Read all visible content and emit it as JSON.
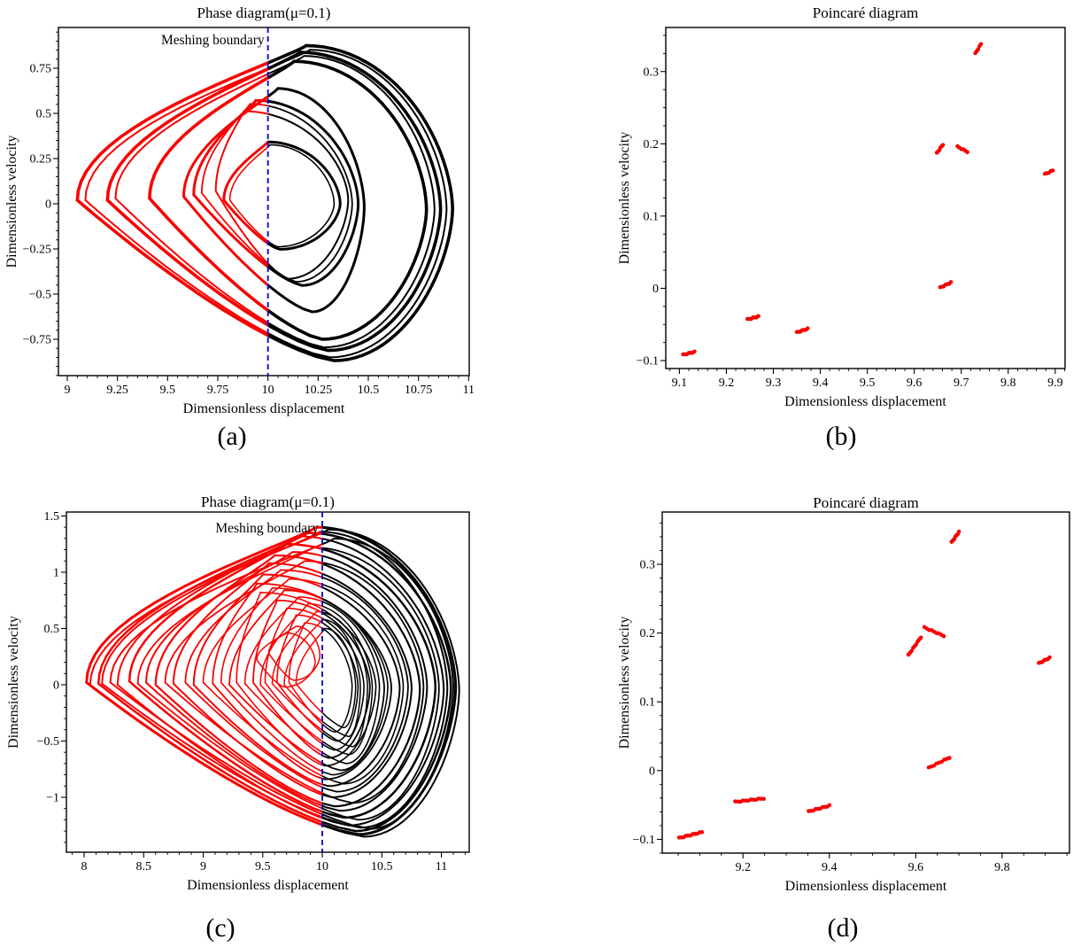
{
  "colors": {
    "background": "#ffffff",
    "trajectory_left_of_boundary": "#f80000",
    "trajectory_right_of_boundary": "#000000",
    "meshing_boundary_line": "#0a0ad8",
    "poincare_points": "#f80000",
    "axes": "#000000"
  },
  "chart_data": [
    {
      "id": "a",
      "type": "line",
      "title": "Phase diagram(μ=0.1)",
      "boundary_label": "Meshing boundary",
      "xlabel": "Dimensionless displacement",
      "ylabel": "Dimensionless velocity",
      "caption": "(a)",
      "xlim": [
        8.956,
        11.003
      ],
      "ylim": [
        -0.951,
        0.9755
      ],
      "boundary_x": 10,
      "grid": false,
      "xticks": [
        [
          9,
          "9"
        ],
        [
          9.25,
          "9.25"
        ],
        [
          9.5,
          "9.5"
        ],
        [
          9.75,
          "9.75"
        ],
        [
          10,
          "10"
        ],
        [
          10.25,
          "10.25"
        ],
        [
          10.5,
          "10.5"
        ],
        [
          10.75,
          "10.75"
        ],
        [
          11,
          "11"
        ]
      ],
      "yticks": [
        [
          -0.75,
          "−0.75"
        ],
        [
          -0.5,
          "−0.5"
        ],
        [
          -0.25,
          "−0.25"
        ],
        [
          0,
          "0"
        ],
        [
          0.25,
          "0.25"
        ],
        [
          0.5,
          "0.5"
        ],
        [
          0.75,
          "0.75"
        ]
      ],
      "minor_x": 0.05,
      "minor_y": 0.05,
      "loops": [
        [
          9.05,
          0.02,
          10.19,
          0.875,
          10.92,
          -0.03,
          10.33,
          -0.868,
          3.6
        ],
        [
          9.09,
          0.02,
          10.21,
          0.852,
          10.89,
          -0.03,
          10.31,
          -0.85,
          2.0
        ],
        [
          9.2,
          0.02,
          10.16,
          0.838,
          10.86,
          -0.03,
          10.3,
          -0.812,
          3.6
        ],
        [
          9.24,
          0.03,
          10.18,
          0.818,
          10.83,
          -0.03,
          10.28,
          -0.795,
          2.0
        ],
        [
          9.41,
          0.03,
          10.13,
          0.788,
          10.79,
          -0.03,
          10.27,
          -0.75,
          3.6
        ],
        [
          9.58,
          0.04,
          10.05,
          0.638,
          10.48,
          -0.02,
          10.22,
          -0.598,
          3.0
        ],
        [
          9.63,
          0.05,
          9.94,
          0.572,
          10.45,
          0.0,
          10.17,
          -0.452,
          3.0
        ],
        [
          9.67,
          0.06,
          9.91,
          0.552,
          10.42,
          0.0,
          10.14,
          -0.432,
          1.8
        ],
        [
          9.74,
          0.07,
          9.88,
          0.512,
          10.4,
          0.02,
          10.1,
          -0.415,
          2.0
        ],
        [
          9.78,
          0.02,
          10.0,
          0.342,
          10.36,
          0.0,
          10.06,
          -0.252,
          3.0
        ],
        [
          9.81,
          0.02,
          10.01,
          0.326,
          10.33,
          0.0,
          10.05,
          -0.238,
          1.6
        ]
      ]
    },
    {
      "id": "b",
      "type": "scatter",
      "title": "Poincaré diagram",
      "xlabel": "Dimensionless displacement",
      "ylabel": "Dimensionless velocity",
      "caption": "(b)",
      "xlim": [
        9.071,
        9.921
      ],
      "ylim": [
        -0.111,
        0.361
      ],
      "grid": false,
      "xticks": [
        [
          9.1,
          "9.1"
        ],
        [
          9.2,
          "9.2"
        ],
        [
          9.3,
          "9.3"
        ],
        [
          9.4,
          "9.4"
        ],
        [
          9.5,
          "9.5"
        ],
        [
          9.6,
          "9.6"
        ],
        [
          9.7,
          "9.7"
        ],
        [
          9.8,
          "9.8"
        ],
        [
          9.9,
          "9.9"
        ]
      ],
      "yticks": [
        [
          -0.1,
          "−0.1"
        ],
        [
          0,
          "0"
        ],
        [
          0.1,
          "0.1"
        ],
        [
          0.2,
          "0.2"
        ],
        [
          0.3,
          "0.3"
        ]
      ],
      "minor_x": 0.02,
      "minor_y": 0.025,
      "clusters": [
        [
          9.108,
          -0.092,
          9.132,
          -0.088,
          7
        ],
        [
          9.245,
          -0.043,
          9.268,
          -0.039,
          7
        ],
        [
          9.35,
          -0.061,
          9.373,
          -0.056,
          7
        ],
        [
          9.655,
          0.001,
          9.678,
          0.008,
          7
        ],
        [
          9.648,
          0.187,
          9.661,
          0.199,
          6
        ],
        [
          9.692,
          0.196,
          9.713,
          0.189,
          6
        ],
        [
          9.73,
          0.325,
          9.742,
          0.338,
          5
        ],
        [
          9.878,
          0.158,
          9.895,
          0.163,
          5
        ]
      ]
    },
    {
      "id": "c",
      "type": "line",
      "title": "Phase diagram(μ=0.1)",
      "boundary_label": "Meshing boundary",
      "xlabel": "Dimensionless displacement",
      "ylabel": "Dimensionless velocity",
      "caption": "(c)",
      "xlim": [
        7.851,
        11.234
      ],
      "ylim": [
        -1.488,
        1.535
      ],
      "boundary_x": 10,
      "grid": false,
      "xticks": [
        [
          8,
          "8"
        ],
        [
          8.5,
          "8.5"
        ],
        [
          9,
          "9"
        ],
        [
          9.5,
          "9.5"
        ],
        [
          10,
          "10"
        ],
        [
          10.5,
          "10.5"
        ],
        [
          11,
          "11"
        ]
      ],
      "yticks": [
        [
          -1,
          "−1"
        ],
        [
          -0.5,
          "−0.5"
        ],
        [
          0,
          "0"
        ],
        [
          0.5,
          "0.5"
        ],
        [
          1,
          "1"
        ],
        [
          1.5,
          "1.5"
        ]
      ],
      "minor_x": 0.1,
      "minor_y": 0.1,
      "loops": [
        [
          8.02,
          0.02,
          9.95,
          1.4,
          11.12,
          -0.02,
          10.3,
          -1.33,
          3.0
        ],
        [
          8.05,
          0.0,
          10.05,
          1.38,
          11.15,
          -0.05,
          10.35,
          -1.35,
          2.0
        ],
        [
          8.12,
          0.01,
          9.88,
          1.35,
          11.08,
          -0.03,
          10.28,
          -1.3,
          2.5
        ],
        [
          8.15,
          0.01,
          9.98,
          1.36,
          11.05,
          -0.03,
          10.32,
          -1.27,
          2.0
        ],
        [
          8.22,
          0.02,
          10.1,
          1.3,
          11.1,
          -0.02,
          10.4,
          -1.28,
          2.0
        ],
        [
          8.28,
          0.0,
          9.8,
          1.32,
          11.02,
          -0.04,
          10.22,
          -1.25,
          2.0
        ],
        [
          8.38,
          0.03,
          9.7,
          1.25,
          10.95,
          -0.02,
          10.18,
          -1.18,
          2.5
        ],
        [
          8.45,
          0.01,
          9.92,
          1.22,
          10.98,
          -0.03,
          10.3,
          -1.2,
          1.8
        ],
        [
          8.52,
          0.02,
          9.75,
          1.18,
          10.88,
          -0.02,
          10.15,
          -1.12,
          2.0
        ],
        [
          8.6,
          0.0,
          9.6,
          1.15,
          10.82,
          -0.04,
          10.1,
          -1.08,
          2.2
        ],
        [
          8.68,
          0.02,
          9.85,
          1.1,
          10.85,
          -0.02,
          10.25,
          -1.05,
          1.8
        ],
        [
          8.75,
          0.01,
          9.55,
          1.08,
          10.75,
          -0.03,
          10.08,
          -1.0,
          2.0
        ],
        [
          8.85,
          0.02,
          9.65,
          1.02,
          10.72,
          -0.02,
          10.12,
          -0.95,
          1.8
        ],
        [
          8.92,
          0.0,
          9.5,
          0.98,
          10.65,
          -0.03,
          10.05,
          -0.9,
          2.0
        ],
        [
          9.0,
          0.02,
          9.72,
          0.94,
          10.68,
          -0.02,
          10.18,
          -0.88,
          1.6
        ],
        [
          9.08,
          0.01,
          9.45,
          0.9,
          10.58,
          -0.03,
          10.02,
          -0.84,
          1.8
        ],
        [
          9.15,
          0.02,
          9.58,
          0.86,
          10.55,
          -0.02,
          10.08,
          -0.8,
          1.6
        ],
        [
          9.22,
          0.0,
          9.68,
          0.84,
          10.52,
          -0.03,
          10.15,
          -0.76,
          1.8
        ],
        [
          9.28,
          0.02,
          9.48,
          0.82,
          10.45,
          -0.02,
          10.02,
          -0.72,
          1.6
        ],
        [
          9.35,
          0.01,
          9.8,
          0.78,
          10.48,
          -0.02,
          10.2,
          -0.7,
          1.6
        ],
        [
          9.42,
          0.02,
          9.62,
          0.75,
          10.4,
          -0.02,
          10.05,
          -0.65,
          1.8
        ],
        [
          9.48,
          0.0,
          9.88,
          0.72,
          10.42,
          -0.03,
          10.22,
          -0.62,
          1.5
        ],
        [
          9.52,
          0.02,
          9.7,
          0.68,
          10.35,
          -0.02,
          10.1,
          -0.58,
          1.6
        ],
        [
          9.58,
          0.01,
          9.95,
          0.65,
          10.38,
          -0.02,
          10.25,
          -0.55,
          1.5
        ],
        [
          9.62,
          0.02,
          9.78,
          0.62,
          10.3,
          -0.02,
          10.12,
          -0.5,
          1.6
        ],
        [
          9.68,
          0.0,
          10.0,
          0.58,
          10.32,
          -0.03,
          10.22,
          -0.46,
          1.5
        ],
        [
          9.72,
          0.02,
          9.85,
          0.55,
          10.25,
          -0.02,
          10.1,
          -0.42,
          1.5
        ],
        [
          9.78,
          0.01,
          10.02,
          0.5,
          10.28,
          -0.02,
          10.18,
          -0.38,
          1.5
        ],
        [
          9.55,
          0.28,
          9.78,
          0.52,
          9.98,
          0.26,
          9.76,
          0.04,
          1.5
        ],
        [
          9.45,
          0.22,
          9.7,
          0.46,
          9.94,
          0.2,
          9.68,
          -0.02,
          1.5
        ]
      ]
    },
    {
      "id": "d",
      "type": "scatter",
      "title": "Poincaré diagram",
      "xlabel": "Dimensionless displacement",
      "ylabel": "Dimensionless velocity",
      "caption": "(d)",
      "xlim": [
        9.013,
        9.956
      ],
      "ylim": [
        -0.12,
        0.376
      ],
      "grid": false,
      "xticks": [
        [
          9.2,
          "9.2"
        ],
        [
          9.4,
          "9.4"
        ],
        [
          9.6,
          "9.6"
        ],
        [
          9.8,
          "9.8"
        ]
      ],
      "yticks": [
        [
          -0.1,
          "−0.1"
        ],
        [
          0,
          "0"
        ],
        [
          0.1,
          "0.1"
        ],
        [
          0.2,
          "0.2"
        ],
        [
          0.3,
          "0.3"
        ]
      ],
      "minor_x": 0.05,
      "minor_y": 0.02,
      "clusters": [
        [
          9.052,
          -0.098,
          9.105,
          -0.0895,
          11
        ],
        [
          9.182,
          -0.0455,
          9.248,
          -0.0405,
          12
        ],
        [
          9.352,
          -0.0595,
          9.4,
          -0.051,
          10
        ],
        [
          9.63,
          0.004,
          9.678,
          0.019,
          9
        ],
        [
          9.583,
          0.168,
          9.612,
          0.194,
          9
        ],
        [
          9.62,
          0.208,
          9.665,
          0.196,
          9
        ],
        [
          9.683,
          0.332,
          9.7,
          0.347,
          7
        ],
        [
          9.885,
          0.156,
          9.91,
          0.164,
          7
        ]
      ]
    }
  ]
}
